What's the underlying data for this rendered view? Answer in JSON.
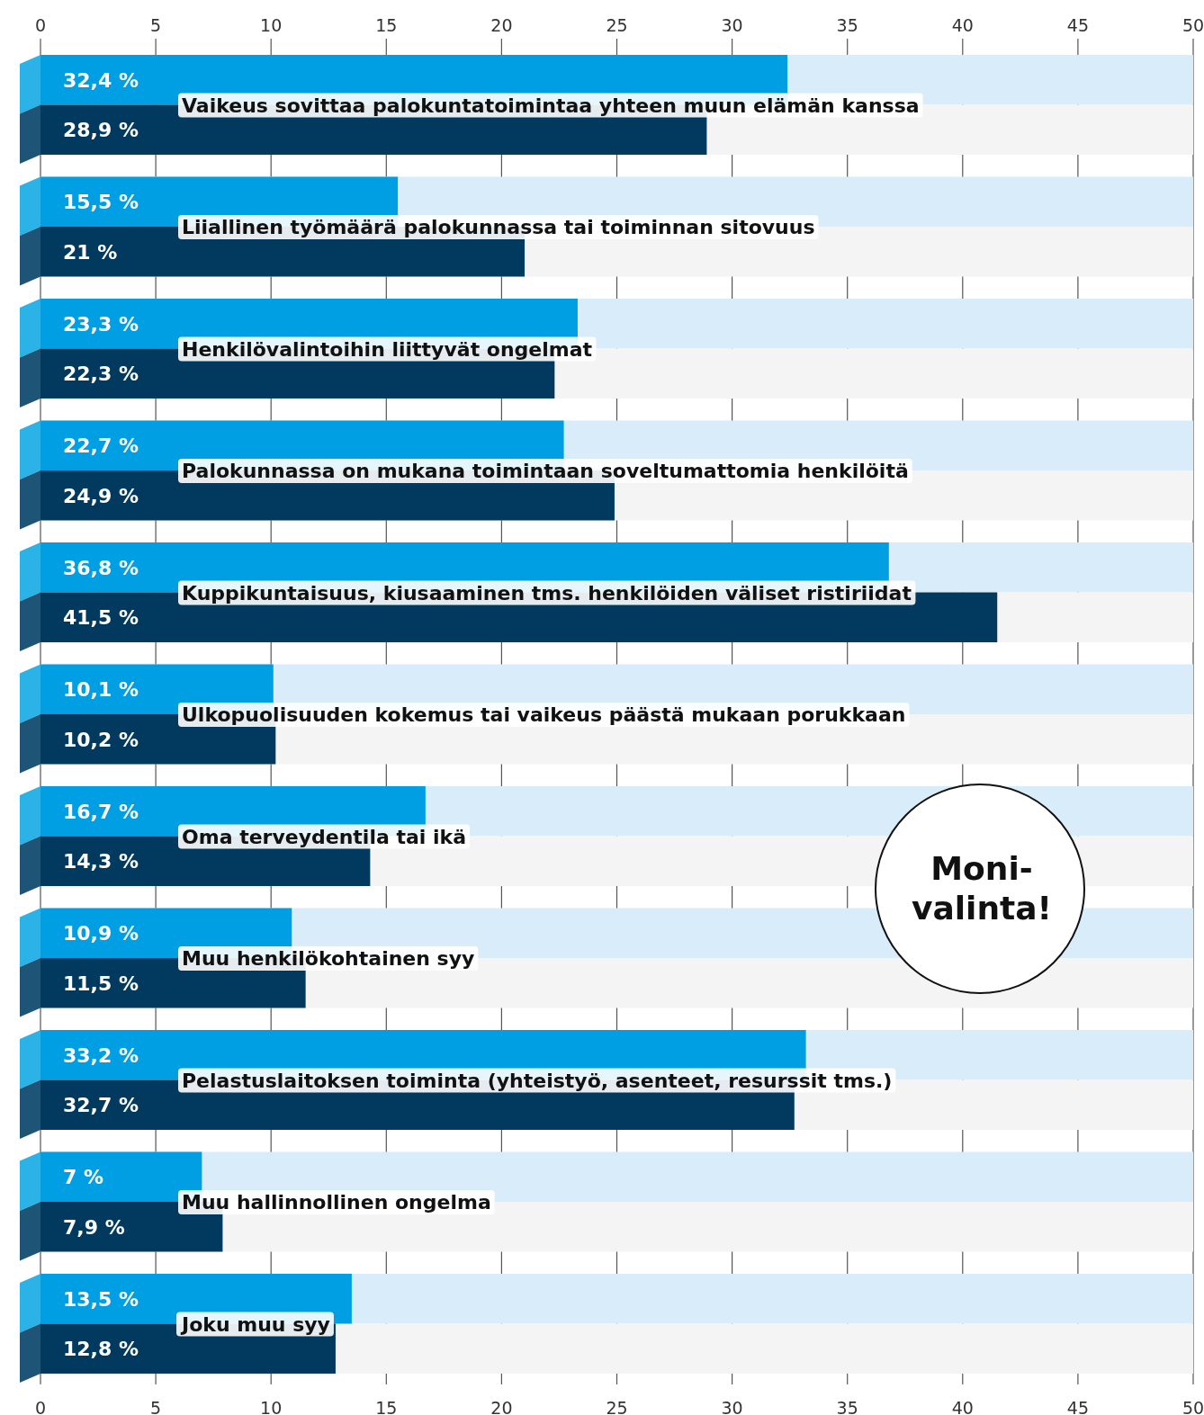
{
  "chart_data": {
    "type": "bar",
    "orientation": "horizontal",
    "categories": [
      "Vaikeus sovittaa palokuntatoimintaa yhteen muun elämän kanssa",
      "Liiallinen työmäärä palokunnassa tai toiminnan sitovuus",
      "Henkilövalintoihin liittyvät ongelmat",
      "Palokunnassa on mukana toimintaan soveltumattomia henkilöitä",
      "Kuppikuntaisuus, kiusaaminen tms. henkilöiden väliset ristiriidat",
      "Ulkopuolisuuden kokemus tai vaikeus päästä mukaan porukkaan",
      "Oma terveydentila tai ikä",
      "Muu henkilökohtainen syy",
      "Pelastuslaitoksen toiminta (yhteistyö, asenteet, resurssit tms.)",
      "Muu hallinnollinen ongelma",
      "Joku muu syy"
    ],
    "series": [
      {
        "color": "#009fe3",
        "values": [
          32.4,
          15.5,
          23.3,
          22.7,
          36.8,
          10.1,
          16.7,
          10.9,
          33.2,
          7,
          13.5
        ],
        "value_labels": [
          "32,4 %",
          "15,5 %",
          "23,3 %",
          "22,7 %",
          "36,8 %",
          "10,1 %",
          "16,7 %",
          "10,9 %",
          "33,2 %",
          "7 %",
          "13,5 %"
        ]
      },
      {
        "color": "#023a5f",
        "values": [
          28.9,
          21,
          22.3,
          24.9,
          41.5,
          10.2,
          14.3,
          11.5,
          32.7,
          7.9,
          12.8
        ],
        "value_labels": [
          "28,9 %",
          "21 %",
          "22,3 %",
          "24,9 %",
          "41,5 %",
          "10,2 %",
          "14,3 %",
          "11,5 %",
          "32,7 %",
          "7,9 %",
          "12,8 %"
        ]
      }
    ],
    "xlim": [
      0,
      50
    ],
    "xticks": [
      0,
      5,
      10,
      15,
      20,
      25,
      30,
      35,
      40,
      45,
      50
    ],
    "x2lim": [
      0,
      50
    ],
    "x2ticks": [
      0,
      5,
      10,
      15,
      20,
      25,
      30,
      35,
      40,
      45,
      50
    ],
    "grid": "x",
    "annotations": [
      "Moni-valinta!"
    ]
  }
}
